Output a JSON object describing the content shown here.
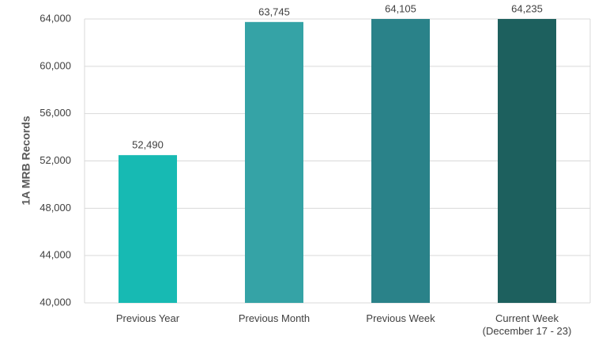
{
  "chart_data": {
    "type": "bar",
    "y_label": "1A MRB Records",
    "categories": [
      "Previous Year",
      "Previous Month",
      "Previous Week",
      "Current Week\n(December 17 - 23)"
    ],
    "values": [
      52490,
      63745,
      64105,
      64235
    ],
    "value_labels": [
      "52,490",
      "63,745",
      "64,105",
      "64,235"
    ],
    "colors": [
      "#17bab3",
      "#35a3a6",
      "#2a8289",
      "#1d605e"
    ],
    "ylim": [
      40000,
      64000
    ],
    "yticks": [
      {
        "value": 40000,
        "label": "40,000"
      },
      {
        "value": 44000,
        "label": "44,000"
      },
      {
        "value": 48000,
        "label": "48,000"
      },
      {
        "value": 52000,
        "label": "52,000"
      },
      {
        "value": 56000,
        "label": "56,000"
      },
      {
        "value": 60000,
        "label": "60,000"
      },
      {
        "value": 64000,
        "label": "64,000"
      }
    ],
    "grid": true
  }
}
